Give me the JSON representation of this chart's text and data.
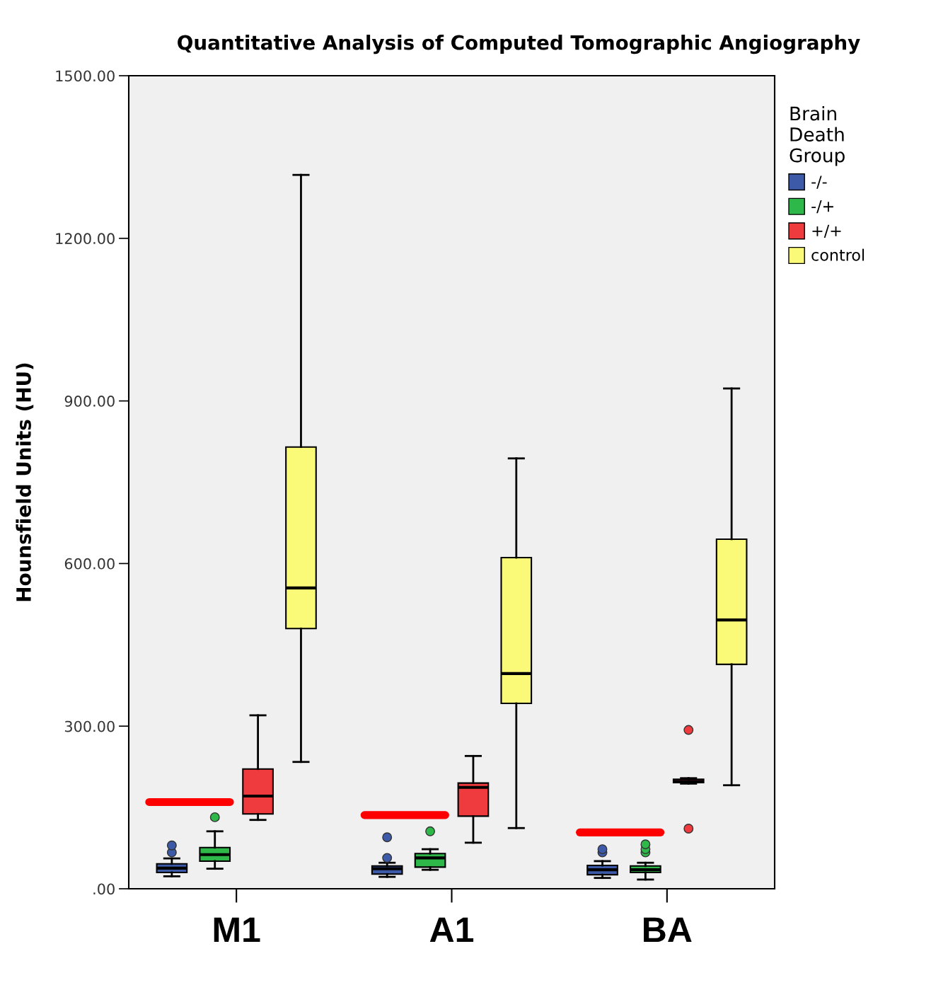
{
  "chart_data": {
    "type": "box",
    "title": "Quantitative Analysis of Computed Tomographic Angiography",
    "ylabel": "Hounsfield Units (HU)",
    "legend_title": "Brain\nDeath\nGroup",
    "legend": "right",
    "categories": [
      "M1",
      "A1",
      "BA"
    ],
    "ylim": [
      0,
      1500
    ],
    "yticks": [
      {
        "value": 0,
        "label": ".00"
      },
      {
        "value": 300,
        "label": "300.00"
      },
      {
        "value": 600,
        "label": "600.00"
      },
      {
        "value": 900,
        "label": "900.00"
      },
      {
        "value": 1200,
        "label": "1200.00"
      },
      {
        "value": 1500,
        "label": "1500.00"
      }
    ],
    "grid": false,
    "ref_lines": [
      {
        "axis": "y",
        "value": 160,
        "color": "#ff0000"
      },
      {
        "axis": "y",
        "value": 136,
        "color": "#ff0000"
      },
      {
        "axis": "y",
        "value": 104,
        "color": "#ff0000"
      }
    ],
    "series": [
      {
        "name": "-/-",
        "color": "#3c5aa8",
        "boxes": [
          {
            "low": 23,
            "q1": 30,
            "median": 38,
            "q3": 46,
            "high": 56,
            "outliers": [
              67,
              80
            ]
          },
          {
            "low": 22,
            "q1": 27,
            "median": 37,
            "q3": 42,
            "high": 48,
            "outliers": [
              57,
              95
            ]
          },
          {
            "low": 20,
            "q1": 26,
            "median": 35,
            "q3": 43,
            "high": 51,
            "outliers": [
              67,
              73
            ]
          }
        ]
      },
      {
        "name": "-/+",
        "color": "#2eb84a",
        "boxes": [
          {
            "low": 37,
            "q1": 51,
            "median": 63,
            "q3": 76,
            "high": 106,
            "outliers": [
              132
            ]
          },
          {
            "low": 35,
            "q1": 40,
            "median": 57,
            "q3": 65,
            "high": 73,
            "outliers": [
              106
            ]
          },
          {
            "low": 17,
            "q1": 30,
            "median": 35,
            "q3": 42,
            "high": 48,
            "outliers": [
              67,
              73,
              82
            ]
          }
        ]
      },
      {
        "name": "+/+",
        "color": "#ef3a3e",
        "boxes": [
          {
            "low": 127,
            "q1": 138,
            "median": 171,
            "q3": 221,
            "high": 320
          },
          {
            "low": 85,
            "q1": 134,
            "median": 187,
            "q3": 195,
            "high": 245
          },
          {
            "low": 194,
            "q1": 196,
            "median": 198,
            "q3": 202,
            "high": 204,
            "outliers": [
              111,
              293
            ]
          }
        ]
      },
      {
        "name": "control",
        "color": "#fafa78",
        "boxes": [
          {
            "low": 234,
            "q1": 480,
            "median": 555,
            "q3": 815,
            "high": 1317
          },
          {
            "low": 112,
            "q1": 342,
            "median": 397,
            "q3": 611,
            "high": 794
          },
          {
            "low": 191,
            "q1": 414,
            "median": 496,
            "q3": 645,
            "high": 923
          }
        ]
      }
    ]
  }
}
